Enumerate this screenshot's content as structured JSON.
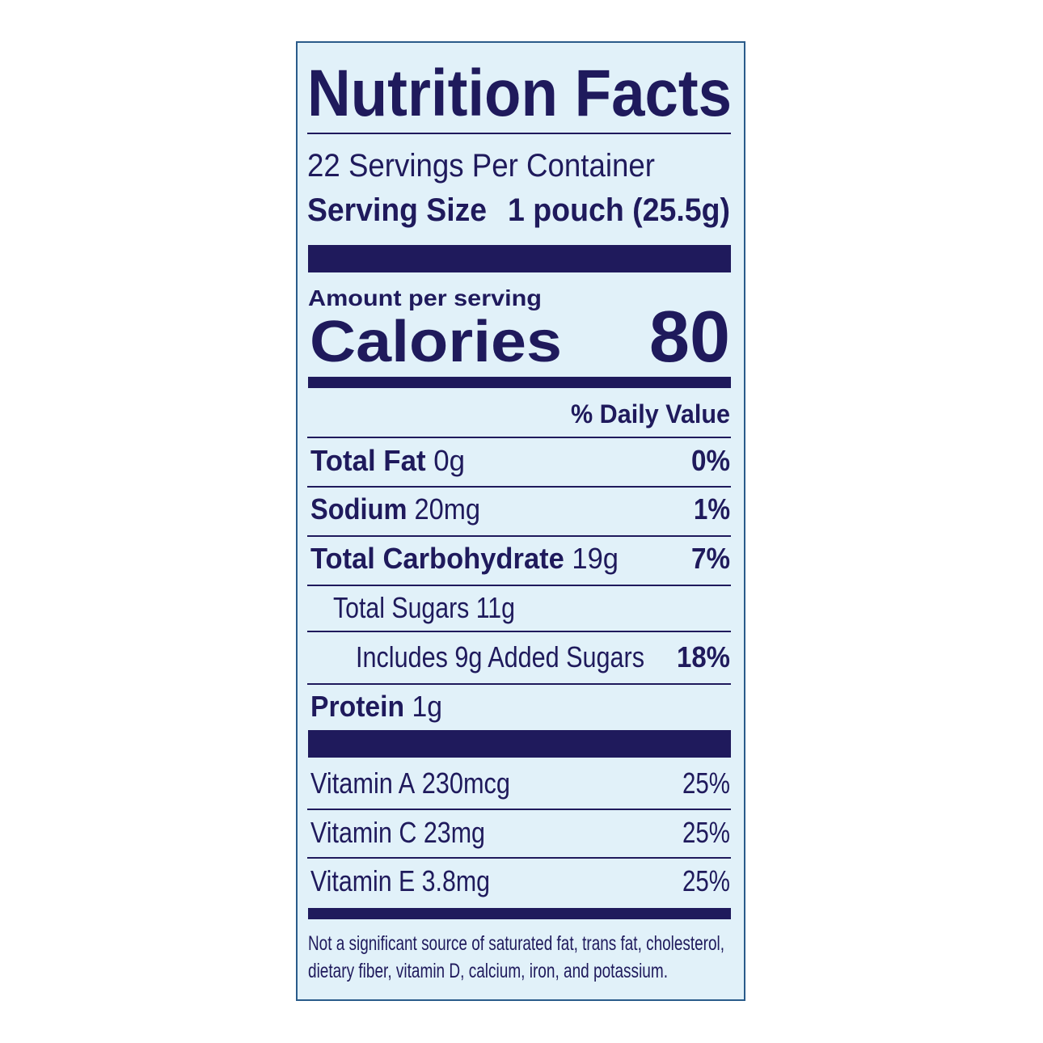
{
  "label": {
    "title": "Nutrition Facts",
    "servings": "22 Servings Per Container",
    "serving_size": {
      "label": "Serving Size",
      "value": "1 pouch (25.5g)"
    },
    "amount_per_serving": "Amount per serving",
    "calories": {
      "label": "Calories",
      "value": "80"
    },
    "daily_value_header": "% Daily Value",
    "nutrients": [
      {
        "name": "Total Fat",
        "amount": "0g",
        "dv": "0%"
      },
      {
        "name": "Sodium",
        "amount": "20mg",
        "dv": "1%"
      },
      {
        "name": "Total Carbohydrate",
        "amount": "19g",
        "dv": "7%"
      },
      {
        "name": "Total Sugars",
        "amount": "11g"
      },
      {
        "name": "Includes 9g Added Sugars",
        "dv": "18%"
      },
      {
        "name": "Protein",
        "amount": "1g"
      }
    ],
    "vitamins": [
      {
        "name": "Vitamin A",
        "amount": "230mcg",
        "dv": "25%"
      },
      {
        "name": "Vitamin C",
        "amount": "23mg",
        "dv": "25%"
      },
      {
        "name": "Vitamin E",
        "amount": "3.8mg",
        "dv": "25%"
      }
    ],
    "footnote": [
      "Not a significant source of saturated fat, trans fat, cholesterol,",
      "dietary fiber, vitamin D, calcium, iron, and potassium."
    ]
  }
}
